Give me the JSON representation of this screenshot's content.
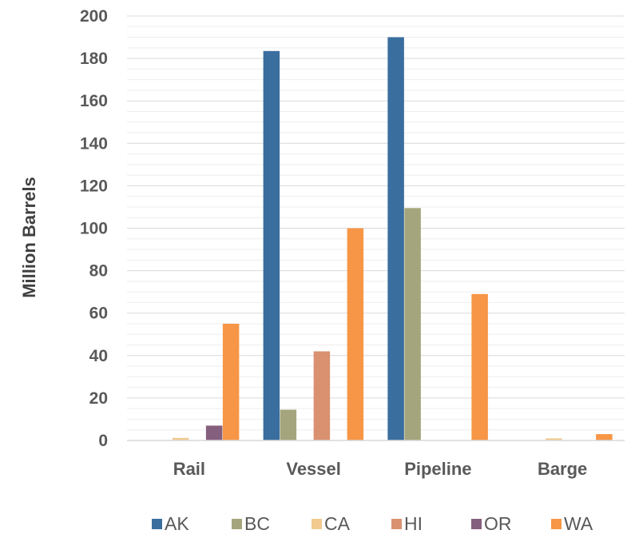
{
  "chart_data": {
    "type": "bar",
    "title": "",
    "xlabel": "",
    "ylabel": "Million Barrels",
    "ylim": [
      0,
      200
    ],
    "y_ticks": [
      0,
      20,
      40,
      60,
      80,
      100,
      120,
      140,
      160,
      180,
      200
    ],
    "y_tick_labels": [
      "0",
      "20",
      "40",
      "60",
      "80",
      "100",
      "120",
      "140",
      "160",
      "180",
      "200"
    ],
    "grid": true,
    "legend_position": "bottom",
    "categories": [
      "Rail",
      "Vessel",
      "Pipeline",
      "Barge"
    ],
    "series": [
      {
        "name": "AK",
        "color": "#3A6E9E",
        "values": [
          0,
          183.5,
          190,
          0
        ]
      },
      {
        "name": "BC",
        "color": "#A4A57C",
        "values": [
          0,
          14.5,
          109.5,
          0
        ]
      },
      {
        "name": "CA",
        "color": "#F2C98E",
        "values": [
          1.2,
          0,
          0,
          1
        ]
      },
      {
        "name": "HI",
        "color": "#D99170",
        "values": [
          0,
          42,
          0,
          0
        ]
      },
      {
        "name": "OR",
        "color": "#855F7E",
        "values": [
          7,
          0,
          0,
          0
        ]
      },
      {
        "name": "WA",
        "color": "#F79646",
        "values": [
          55,
          100,
          69,
          3
        ]
      }
    ]
  }
}
